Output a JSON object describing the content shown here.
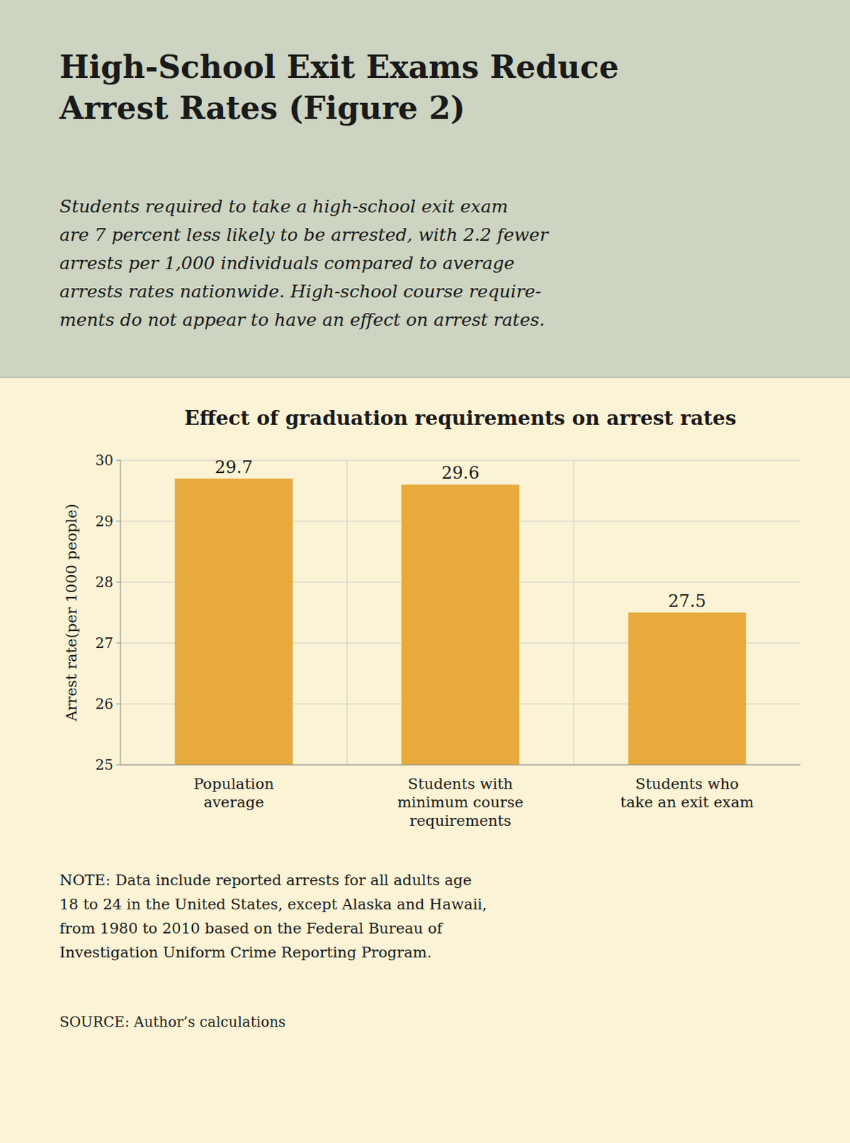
{
  "chart_data": {
    "type": "bar",
    "title": "High-School Exit Exams Reduce\nArrest Rates (Figure 2)",
    "subtitle": "Students required to take a high-school exit exam\nare 7 percent less likely to be arrested, with 2.2 fewer\narrests per 1,000 individuals compared to average\narrests rates nationwide. High-school course require-\nments do not appear to have an effect on arrest rates.",
    "chart_title": "Effect of graduation requirements on arrest rates",
    "categories": [
      "Population\naverage",
      "Students with\nminimum course\nrequirements",
      "Students who\ntake an exit exam"
    ],
    "values": [
      29.7,
      29.6,
      27.5
    ],
    "color": "#E8AA3C",
    "ylim": [
      25,
      30
    ],
    "yticks": [
      25,
      26,
      27,
      28,
      29,
      30
    ],
    "ylabel": "Arrest rate(per 1000 people)",
    "grid": true,
    "data_labels": true,
    "note": "NOTE: Data include reported arrests for all adults age\n18 to 24 in the United States, except Alaska and Hawaii,\nfrom 1980 to 2010 based on the Federal Bureau of\nInvestigation Uniform Crime Reporting Program.",
    "source": "SOURCE: Author’s calculations"
  }
}
